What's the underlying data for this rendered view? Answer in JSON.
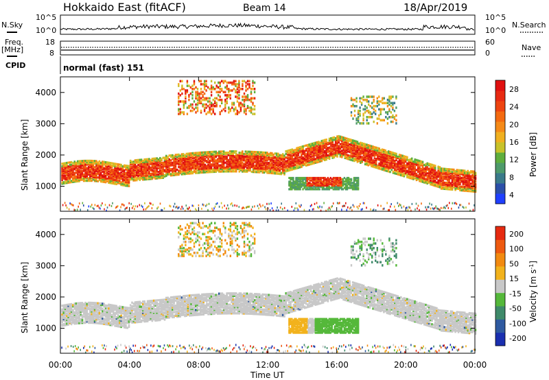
{
  "header": {
    "title": "Hokkaido East (fitACF)",
    "beam": "Beam 14",
    "date": "18/Apr/2019"
  },
  "left_labels": {
    "nsky": "N.Sky",
    "freq": "Freq.",
    "freq_unit": "[MHz]",
    "cpid": "CPID"
  },
  "right_labels": {
    "nsearch": "N.Search",
    "nave": "Nave"
  },
  "cpid_text": "normal (fast) 151",
  "noise_ticks": {
    "left": [
      "10^5",
      "10^0"
    ],
    "right": [
      "10^5",
      "10^0"
    ]
  },
  "freq_ticks": {
    "left": [
      "18",
      "8"
    ],
    "right": [
      "60",
      "0"
    ]
  },
  "colorbars": {
    "power": {
      "label": "Power [dB]",
      "ticks": [
        "4",
        "8",
        "12",
        "16",
        "20",
        "24",
        "28"
      ],
      "colors": [
        "#1f3fff",
        "#2b4fa8",
        "#3a7a8a",
        "#4e9a6a",
        "#5fae3d",
        "#c8c22a",
        "#f0b020",
        "#f58a18",
        "#f46a10",
        "#ee4410",
        "#e82a12",
        "#e01010"
      ]
    },
    "velocity": {
      "label": "Velocity [m s",
      "label_sup": "-1",
      "label_end": "]",
      "ticks": [
        "200",
        "100",
        "50",
        "15",
        "-15",
        "-50",
        "-100",
        "-200"
      ],
      "colors": [
        "#1a2fb0",
        "#2f5aa0",
        "#3f8a6a",
        "#55b83a",
        "#c8c8c8",
        "#f2b21c",
        "#f28a10",
        "#ee5a10",
        "#e62a10"
      ]
    }
  },
  "chart_data": [
    {
      "type": "heatmap",
      "name": "power",
      "ylabel": "Slant Range [km]",
      "xlim_hours": [
        0,
        24
      ],
      "ylim_km": [
        200,
        4500
      ],
      "y_ticks": [
        "1000",
        "2000",
        "3000",
        "4000"
      ]
    },
    {
      "type": "heatmap",
      "name": "velocity",
      "ylabel": "Slant Range [km]",
      "xlim_hours": [
        0,
        24
      ],
      "ylim_km": [
        200,
        4500
      ],
      "y_ticks": [
        "1000",
        "2000",
        "3000",
        "4000"
      ]
    }
  ],
  "x_axis": {
    "label": "Time UT",
    "ticks": [
      "00:00",
      "04:00",
      "08:00",
      "12:00",
      "16:00",
      "20:00",
      "00:00"
    ]
  }
}
